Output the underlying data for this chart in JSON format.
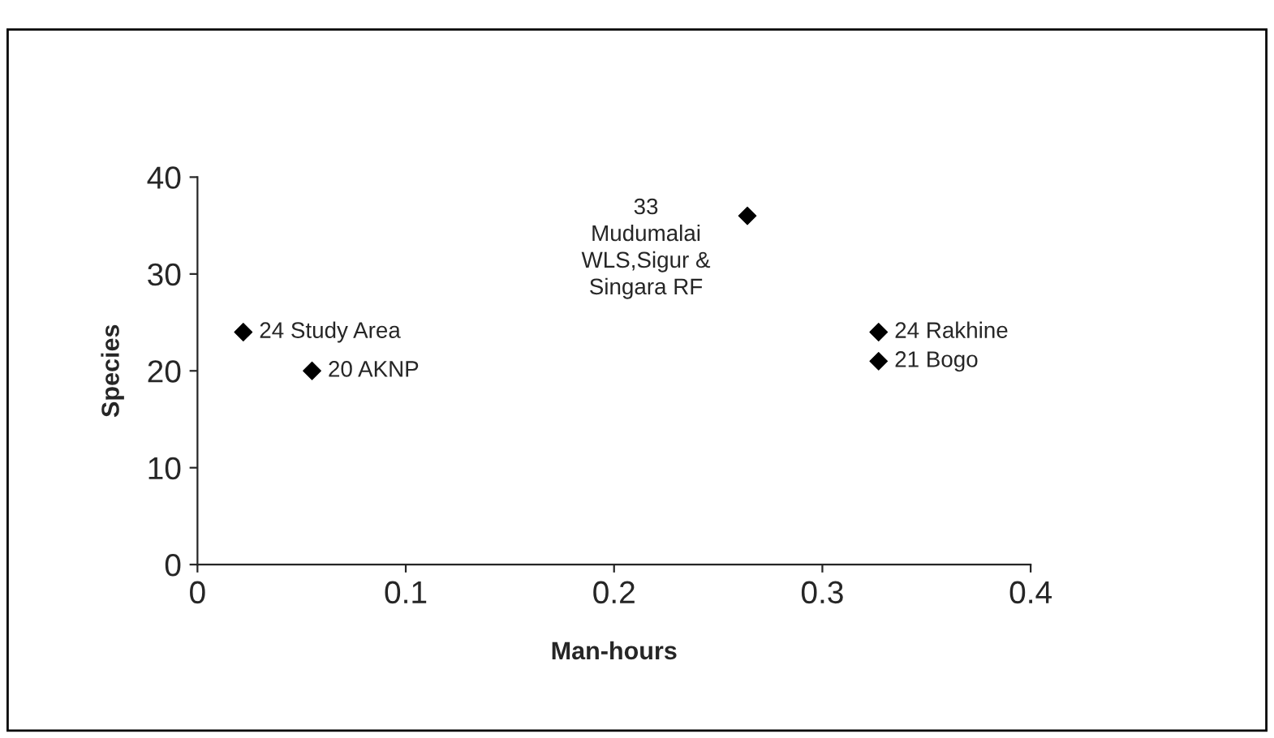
{
  "chart_data": {
    "type": "scatter",
    "xlabel": "Man-hours",
    "ylabel": "Species",
    "x": [
      0.022,
      0.055,
      0.264,
      0.327,
      0.327
    ],
    "values": [
      24,
      20,
      36,
      24,
      21
    ],
    "color": "#000000",
    "marker": "diamond",
    "xlim": [
      0,
      0.4
    ],
    "xticks": [
      0,
      0.1,
      0.2,
      0.3,
      0.4
    ],
    "ylim": [
      0,
      40
    ],
    "yticks": [
      0,
      10,
      20,
      30,
      40
    ],
    "grid": false,
    "legend": false,
    "annotations": [
      {
        "text": "24 Study Area",
        "x": 0.022,
        "y": 24
      },
      {
        "text": "20 AKNP",
        "x": 0.055,
        "y": 20
      },
      {
        "text": "33\nMudumalai\nWLS,Sigur &\nSingara RF",
        "x": 0.264,
        "y": 36
      },
      {
        "text": "24 Rakhine",
        "x": 0.327,
        "y": 24
      },
      {
        "text": "21 Bogo",
        "x": 0.327,
        "y": 21
      }
    ]
  }
}
